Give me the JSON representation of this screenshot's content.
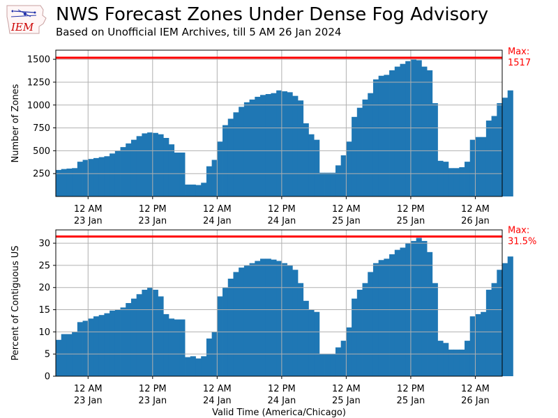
{
  "header": {
    "title": "NWS Forecast Zones Under Dense Fog Advisory",
    "subtitle": "Based on Unofficial IEM Archives, till 5 AM 26 Jan 2024",
    "logo_text": "IEM"
  },
  "colors": {
    "bar": "#1f77b4",
    "max_line": "#ff0000",
    "grid": "#b0b0b0",
    "logo": "#cc0000"
  },
  "chart_data": [
    {
      "type": "bar",
      "ylabel": "Number of Zones",
      "xlabel": "",
      "ylim": [
        0,
        1600
      ],
      "yticks": [
        250,
        500,
        750,
        1000,
        1250,
        1500
      ],
      "xlim": [
        0,
        83
      ],
      "xticks": [
        {
          "x": 6,
          "line1": "12 AM",
          "line2": "23 Jan"
        },
        {
          "x": 18,
          "line1": "12 PM",
          "line2": "23 Jan"
        },
        {
          "x": 30,
          "line1": "12 AM",
          "line2": "24 Jan"
        },
        {
          "x": 42,
          "line1": "12 PM",
          "line2": "24 Jan"
        },
        {
          "x": 54,
          "line1": "12 AM",
          "line2": "25 Jan"
        },
        {
          "x": 66,
          "line1": "12 PM",
          "line2": "25 Jan"
        },
        {
          "x": 78,
          "line1": "12 AM",
          "line2": "26 Jan"
        }
      ],
      "max_line": 1517,
      "max_label_1": "Max:",
      "max_label_2": "1517",
      "values": [
        290,
        300,
        305,
        310,
        380,
        400,
        410,
        420,
        430,
        440,
        470,
        500,
        540,
        580,
        620,
        660,
        690,
        700,
        695,
        680,
        640,
        570,
        480,
        480,
        130,
        130,
        125,
        150,
        330,
        400,
        600,
        780,
        850,
        920,
        980,
        1030,
        1060,
        1090,
        1110,
        1120,
        1130,
        1160,
        1150,
        1140,
        1100,
        1050,
        800,
        680,
        620,
        260,
        260,
        260,
        340,
        450,
        600,
        870,
        970,
        1060,
        1130,
        1280,
        1320,
        1330,
        1380,
        1420,
        1450,
        1480,
        1500,
        1490,
        1420,
        1380,
        1020,
        390,
        380,
        310,
        310,
        320,
        380,
        620,
        650,
        650,
        830,
        880,
        1020,
        1080,
        1160
      ]
    },
    {
      "type": "bar",
      "ylabel": "Percent of Contiguous US",
      "xlabel": "Valid Time (America/Chicago)",
      "ylim": [
        0,
        33
      ],
      "yticks": [
        0,
        5,
        10,
        15,
        20,
        25,
        30
      ],
      "xlim": [
        0,
        83
      ],
      "xticks": [
        {
          "x": 6,
          "line1": "12 AM",
          "line2": "23 Jan"
        },
        {
          "x": 18,
          "line1": "12 PM",
          "line2": "23 Jan"
        },
        {
          "x": 30,
          "line1": "12 AM",
          "line2": "24 Jan"
        },
        {
          "x": 42,
          "line1": "12 PM",
          "line2": "24 Jan"
        },
        {
          "x": 54,
          "line1": "12 AM",
          "line2": "25 Jan"
        },
        {
          "x": 66,
          "line1": "12 PM",
          "line2": "25 Jan"
        },
        {
          "x": 78,
          "line1": "12 AM",
          "line2": "26 Jan"
        }
      ],
      "max_line": 31.5,
      "max_label_1": "Max:",
      "max_label_2": "31.5%",
      "values": [
        8.2,
        9.5,
        9.5,
        10,
        12.2,
        12.5,
        13,
        13.5,
        13.8,
        14.2,
        14.8,
        15,
        15.5,
        16.5,
        17.5,
        18.5,
        19.5,
        20,
        19.5,
        18,
        14,
        13,
        12.8,
        12.8,
        4.3,
        4.5,
        4.0,
        4.5,
        8.5,
        10,
        18,
        20,
        22,
        23.5,
        24.5,
        25,
        25.5,
        26,
        26.5,
        26.5,
        26.3,
        26,
        25.5,
        25,
        24,
        21,
        17,
        15,
        14.5,
        5,
        5,
        5,
        6.5,
        8,
        11,
        17.5,
        19.5,
        21,
        23.5,
        25.5,
        26.2,
        26.5,
        27.5,
        28.5,
        29,
        30,
        30.5,
        31.2,
        30.5,
        28,
        21,
        8,
        7.5,
        6,
        6,
        6,
        8,
        13.5,
        14,
        14.5,
        19.5,
        21,
        24,
        25.5,
        27
      ]
    }
  ]
}
